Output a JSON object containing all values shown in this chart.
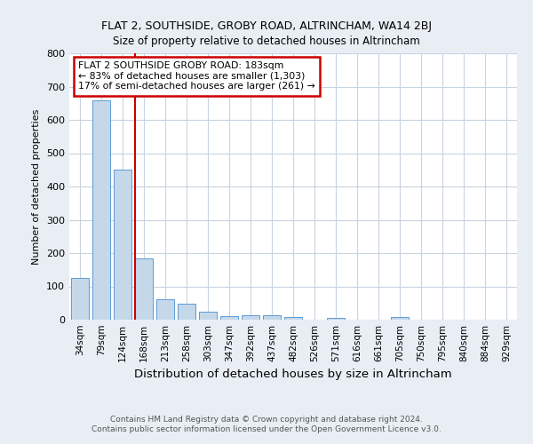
{
  "title1": "FLAT 2, SOUTHSIDE, GROBY ROAD, ALTRINCHAM, WA14 2BJ",
  "title2": "Size of property relative to detached houses in Altrincham",
  "xlabel": "Distribution of detached houses by size in Altrincham",
  "ylabel": "Number of detached properties",
  "footnote1": "Contains HM Land Registry data © Crown copyright and database right 2024.",
  "footnote2": "Contains public sector information licensed under the Open Government Licence v3.0.",
  "bin_labels": [
    "34sqm",
    "79sqm",
    "124sqm",
    "168sqm",
    "213sqm",
    "258sqm",
    "303sqm",
    "347sqm",
    "392sqm",
    "437sqm",
    "482sqm",
    "526sqm",
    "571sqm",
    "616sqm",
    "661sqm",
    "705sqm",
    "750sqm",
    "795sqm",
    "840sqm",
    "884sqm",
    "929sqm"
  ],
  "bar_heights": [
    125,
    660,
    450,
    185,
    62,
    47,
    25,
    10,
    13,
    13,
    8,
    0,
    6,
    0,
    0,
    7,
    0,
    0,
    0,
    0,
    0
  ],
  "bar_color": "#c5d8ea",
  "bar_edge_color": "#5b9bd5",
  "red_line_index": 3,
  "red_line_color": "#cc0000",
  "annotation_text": "FLAT 2 SOUTHSIDE GROBY ROAD: 183sqm\n← 83% of detached houses are smaller (1,303)\n17% of semi-detached houses are larger (261) →",
  "annotation_box_color": "white",
  "annotation_box_edge_color": "#cc0000",
  "ylim": [
    0,
    800
  ],
  "yticks": [
    0,
    100,
    200,
    300,
    400,
    500,
    600,
    700,
    800
  ],
  "fig_bg_color": "#e8eef4",
  "plot_bg_color": "white",
  "grid_color": "#c8d4e0"
}
